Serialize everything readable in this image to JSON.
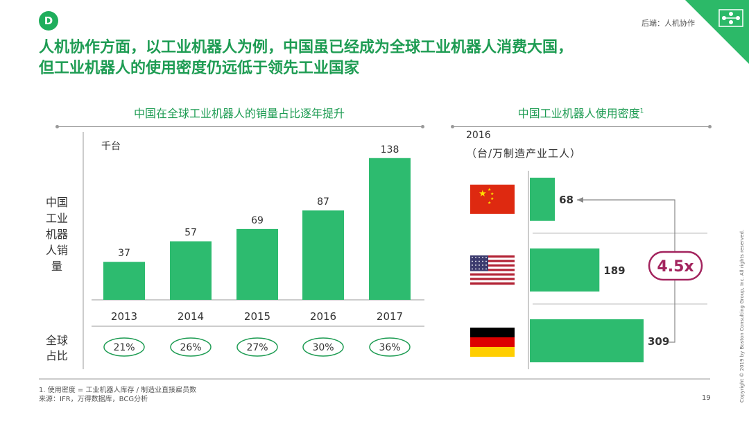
{
  "badge": "D",
  "section_tag": "后端：人机协作",
  "headline": [
    "人机协作方面，以工业机器人为例，中国虽已经成为全球工业机器人消费大国，",
    "但工业机器人的使用密度仍远低于领先工业国家"
  ],
  "footnote": [
    "1. 使用密度 = 工业机器人库存 / 制造业直接雇员数",
    "来源：IFR，万得数据库，BCG分析"
  ],
  "page_number": "19",
  "copyright": "Copyright © 2019 by Boston Consulting Group, Inc. All rights reserved.",
  "colors": {
    "accent": "#1e9c53",
    "bar": "#2dbb6f",
    "multiplier": "#a3245e"
  },
  "chart_data": [
    {
      "type": "bar",
      "title": "中国在全球工业机器人的销量占比逐年提升",
      "unit_label": "千台",
      "ylabel": "中国工业机器人销量",
      "categories": [
        "2013",
        "2014",
        "2015",
        "2016",
        "2017"
      ],
      "values": [
        37,
        57,
        69,
        87,
        138
      ],
      "ylim": [
        0,
        150
      ],
      "global_share": {
        "label": "全球占比",
        "values": [
          "21%",
          "26%",
          "27%",
          "30%",
          "36%"
        ]
      }
    },
    {
      "type": "bar",
      "orientation": "horizontal",
      "title": "中国工业机器人使用密度",
      "title_sup": "1",
      "year": "2016",
      "unit_label": "（台/万制造产业工人）",
      "categories": [
        "China",
        "USA",
        "Germany"
      ],
      "category_icons": [
        "china-flag-icon",
        "usa-flag-icon",
        "germany-flag-icon"
      ],
      "values": [
        68,
        189,
        309
      ],
      "xlim": [
        0,
        320
      ],
      "multiplier": "4.5x"
    }
  ]
}
